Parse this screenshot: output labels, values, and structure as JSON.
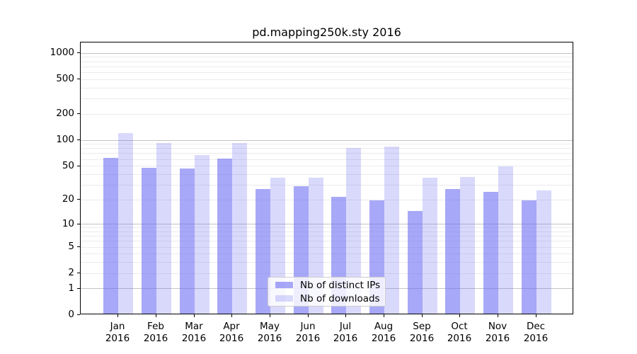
{
  "chart_data": {
    "type": "bar",
    "title": "pd.mapping250k.sty 2016",
    "categories": [
      "Jan",
      "Feb",
      "Mar",
      "Apr",
      "May",
      "Jun",
      "Jul",
      "Aug",
      "Sep",
      "Oct",
      "Nov",
      "Dec"
    ],
    "x_tick_second_line": "2016",
    "series": [
      {
        "name": "Nb of distinct IPs",
        "color": "rgba(110,110,243,0.60)",
        "values": [
          60,
          46,
          45,
          59,
          26,
          28,
          21,
          19,
          14,
          26,
          24,
          19
        ]
      },
      {
        "name": "Nb of downloads",
        "color": "rgba(110,110,243,0.26)",
        "values": [
          116,
          90,
          65,
          90,
          35,
          35,
          78,
          81,
          35,
          36,
          48,
          25
        ]
      }
    ],
    "y_axis": {
      "scale": "log10(value+1)",
      "tick_labels": [
        1000,
        500,
        200,
        100,
        50,
        20,
        10,
        5,
        2,
        1,
        0
      ],
      "top_value": 1320
    },
    "grid": {
      "major_values": [
        1,
        10,
        100,
        1000
      ],
      "minor_values": [
        2,
        3,
        4,
        5,
        6,
        7,
        8,
        9,
        20,
        30,
        40,
        50,
        60,
        70,
        80,
        90,
        200,
        300,
        400,
        500,
        600,
        700,
        800,
        900
      ],
      "major_color": "#c3c3c3",
      "minor_color": "#ebebeb"
    },
    "legend_position": "lower center",
    "frame_color": "#000000",
    "background_color": "#ffffff"
  }
}
